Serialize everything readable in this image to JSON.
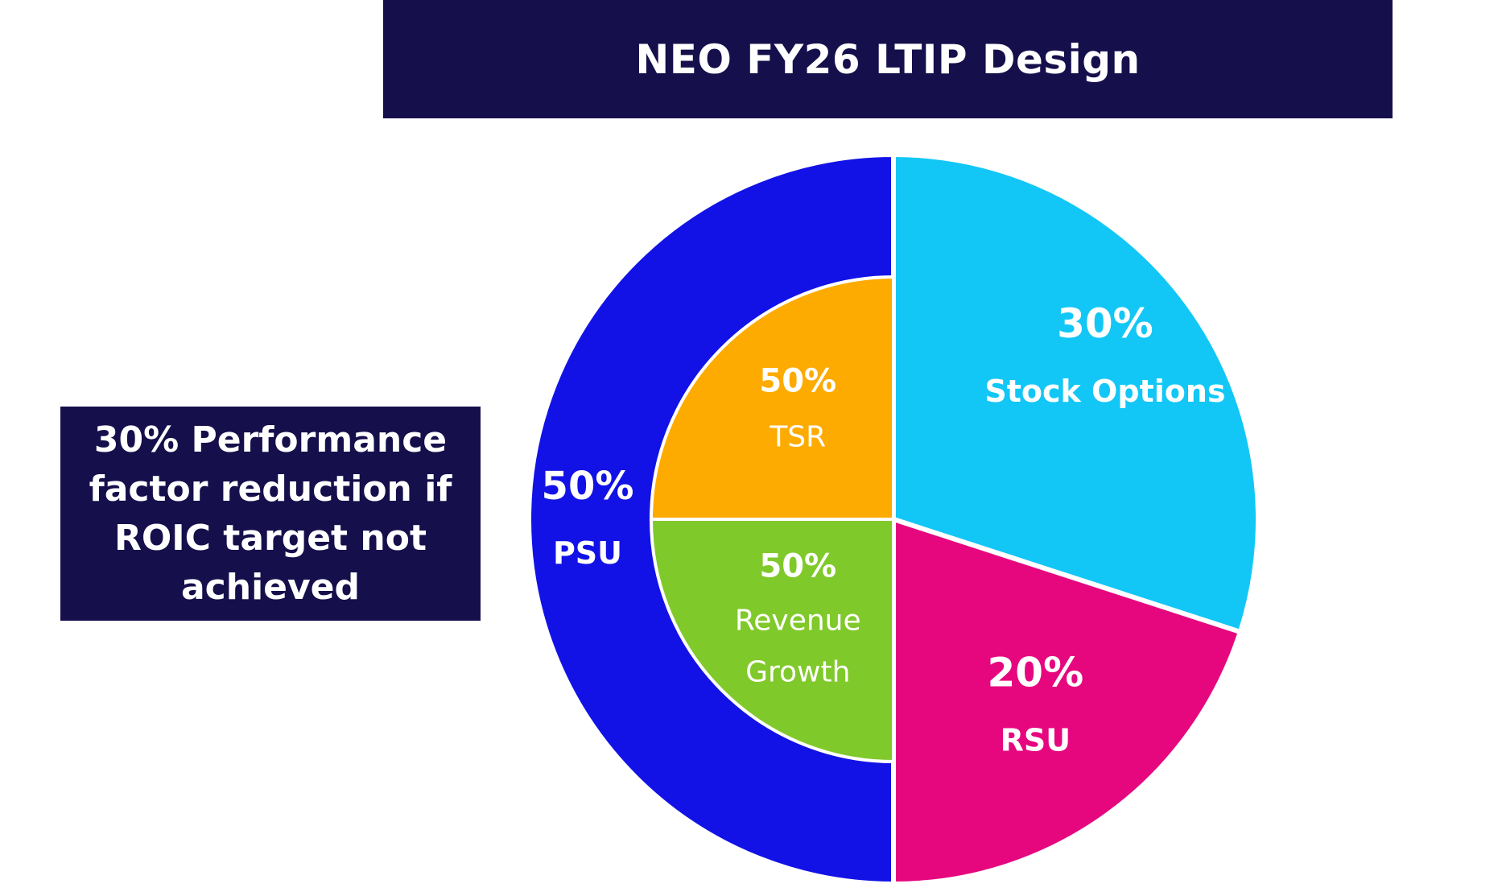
{
  "title": "NEO FY26 LTIP Design",
  "note": "30% Performance factor reduction if ROIC target not achieved",
  "chart_data": {
    "type": "pie",
    "title": "NEO FY26 LTIP Design",
    "outer": [
      {
        "name": "Stock Options",
        "pct_label": "30%",
        "value": 30,
        "color": "#12c7f6"
      },
      {
        "name": "RSU",
        "pct_label": "20%",
        "value": 20,
        "color": "#e6077f"
      },
      {
        "name": "PSU",
        "pct_label": "50%",
        "value": 50,
        "color": "#1212e6"
      }
    ],
    "inner_psu_split": [
      {
        "name": "Revenue Growth",
        "name_lines": [
          "Revenue",
          "Growth"
        ],
        "pct_label": "50%",
        "value": 50,
        "color": "#80c92a"
      },
      {
        "name": "TSR",
        "name_lines": [
          "TSR"
        ],
        "pct_label": "50%",
        "value": 50,
        "color": "#fdab00"
      }
    ]
  }
}
